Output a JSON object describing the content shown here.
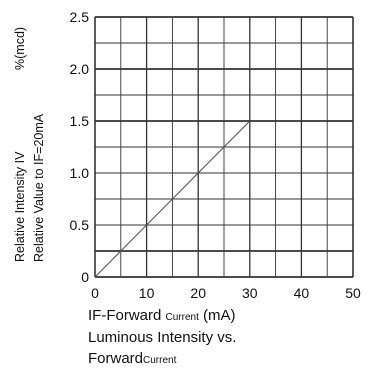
{
  "chart_data": {
    "type": "line",
    "x": [
      0,
      30
    ],
    "series": [
      {
        "values": [
          0,
          1.5
        ]
      }
    ],
    "xlim": [
      0,
      50
    ],
    "ylim": [
      0,
      2.5
    ],
    "x_ticks": [
      "0",
      "10",
      "20",
      "30",
      "40",
      "50"
    ],
    "y_ticks": [
      "0",
      "0.5",
      "1.0",
      "1.5",
      "2.0",
      "2.5"
    ],
    "ylabel_line1": "Relative Intensity IV",
    "ylabel_unit": "%(mcd)",
    "ylabel_line2": "Relative Value to IF=20mA",
    "xlabel_main": "IF-Forward",
    "xlabel_small": "Current",
    "xlabel_unit": "(mA)",
    "caption_line1": "Luminous Intensity vs.",
    "caption_line2_main": "Forward",
    "caption_line2_small": "Current",
    "grid": true
  }
}
